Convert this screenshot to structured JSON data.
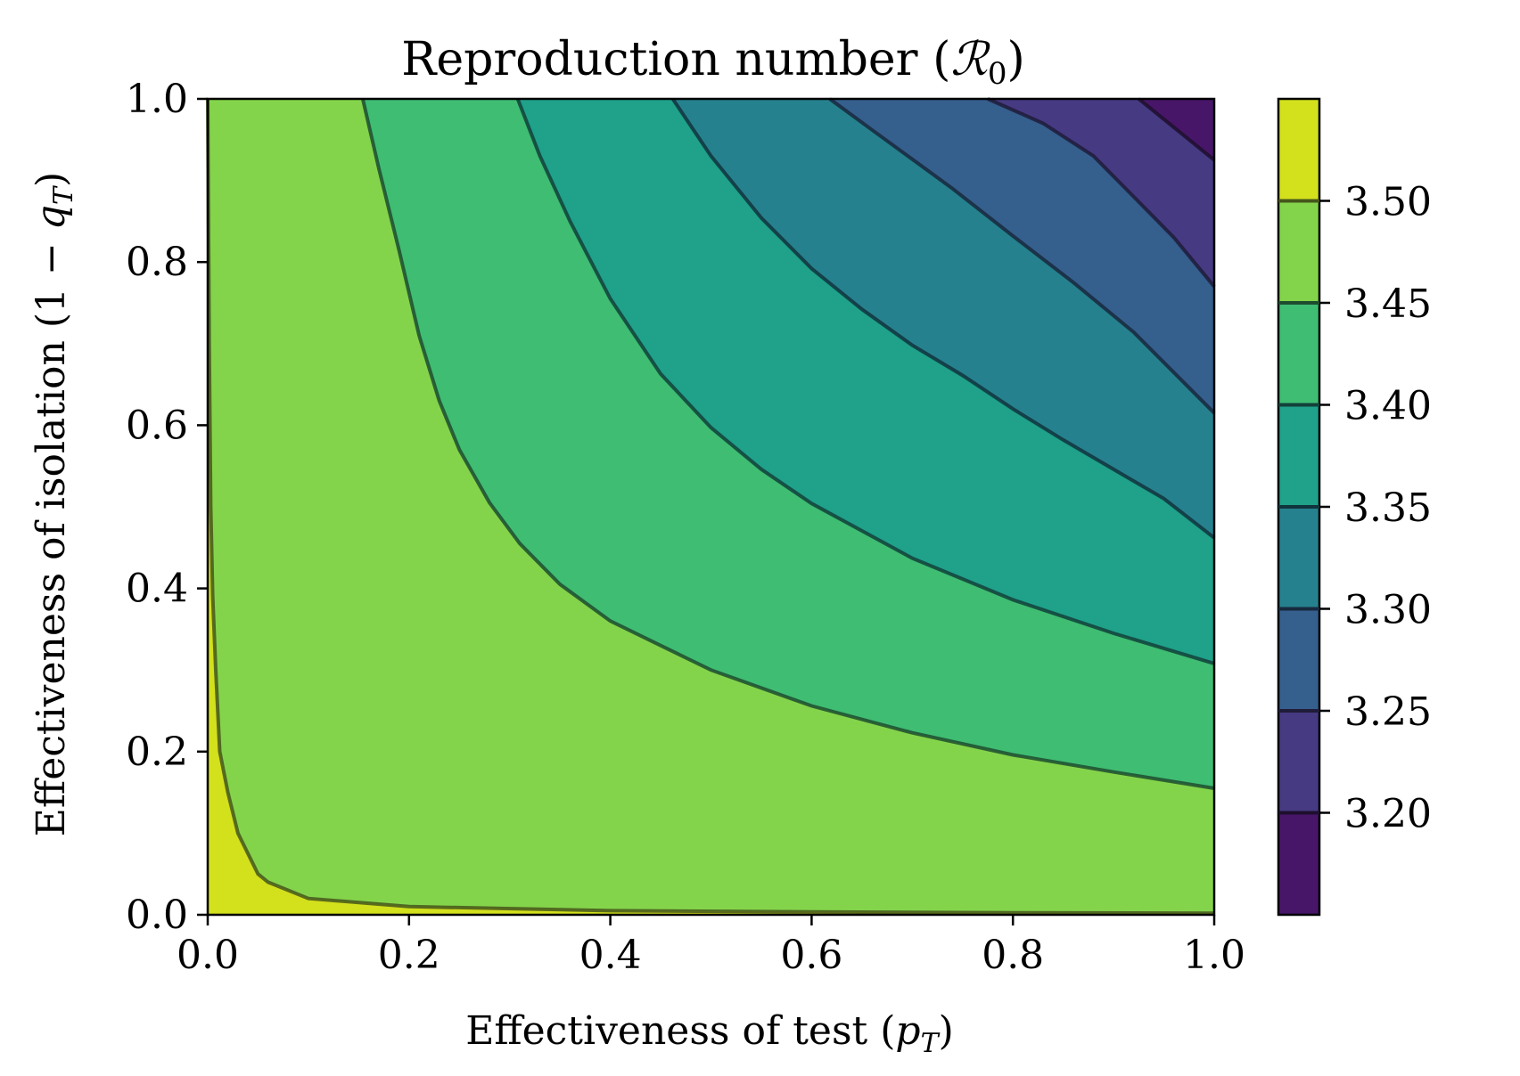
{
  "chart_data": {
    "type": "contourf",
    "title": "Reproduction number (ℛ₀)",
    "title_parts": {
      "main": "Reproduction number (",
      "symbol": "ℛ",
      "sub": "0",
      "close": ")"
    },
    "xlabel": "Effectiveness of test (p_T)",
    "xlabel_parts": {
      "main": "Effectiveness of test (",
      "symbol": "p",
      "sub": "T",
      "close": ")"
    },
    "ylabel": "Effectiveness of isolation (1 − q_T)",
    "ylabel_parts": {
      "main": "Effectiveness of isolation (1 − ",
      "symbol": "q",
      "sub": "T",
      "close": ")"
    },
    "xlim": [
      0.0,
      1.0
    ],
    "ylim": [
      0.0,
      1.0
    ],
    "x_ticks": [
      0.0,
      0.2,
      0.4,
      0.6,
      0.8,
      1.0
    ],
    "x_tick_labels": [
      "0.0",
      "0.2",
      "0.4",
      "0.6",
      "0.8",
      "1.0"
    ],
    "y_ticks": [
      0.0,
      0.2,
      0.4,
      0.6,
      0.8,
      1.0
    ],
    "y_tick_labels": [
      "0.0",
      "0.2",
      "0.4",
      "0.6",
      "0.8",
      "1.0"
    ],
    "colorbar": {
      "range": [
        3.15,
        3.55
      ],
      "ticks": [
        3.2,
        3.25,
        3.3,
        3.35,
        3.4,
        3.45,
        3.5
      ],
      "tick_labels": [
        "3.20",
        "3.25",
        "3.30",
        "3.35",
        "3.40",
        "3.45",
        "3.50"
      ],
      "bands": [
        {
          "from": 3.15,
          "to": 3.2,
          "color": "#481668"
        },
        {
          "from": 3.2,
          "to": 3.25,
          "color": "#463a83"
        },
        {
          "from": 3.25,
          "to": 3.3,
          "color": "#355f8d"
        },
        {
          "from": 3.3,
          "to": 3.35,
          "color": "#26818e"
        },
        {
          "from": 3.35,
          "to": 3.4,
          "color": "#1fa18a"
        },
        {
          "from": 3.4,
          "to": 3.45,
          "color": "#3fbd72"
        },
        {
          "from": 3.45,
          "to": 3.5,
          "color": "#84d44b"
        },
        {
          "from": 3.5,
          "to": 3.55,
          "color": "#d3e01c"
        }
      ]
    },
    "contour_levels": [
      {
        "level": 3.2,
        "line_color": "#1e0f2e",
        "points": [
          [
            0.925,
            1.0
          ],
          [
            1.0,
            0.925
          ]
        ]
      },
      {
        "level": 3.25,
        "line_color": "#1f1c3a",
        "points": [
          [
            0.775,
            1.0
          ],
          [
            0.83,
            0.97
          ],
          [
            0.88,
            0.93
          ],
          [
            0.92,
            0.88
          ],
          [
            0.96,
            0.83
          ],
          [
            1.0,
            0.77
          ]
        ]
      },
      {
        "level": 3.3,
        "line_color": "#18293d",
        "points": [
          [
            0.618,
            1.0
          ],
          [
            0.66,
            0.962
          ],
          [
            0.7,
            0.926
          ],
          [
            0.74,
            0.89
          ],
          [
            0.8,
            0.832
          ],
          [
            0.86,
            0.775
          ],
          [
            0.92,
            0.714
          ],
          [
            1.0,
            0.615
          ]
        ]
      },
      {
        "level": 3.35,
        "line_color": "#11343d",
        "points": [
          [
            0.462,
            1.0
          ],
          [
            0.5,
            0.93
          ],
          [
            0.55,
            0.854
          ],
          [
            0.6,
            0.792
          ],
          [
            0.65,
            0.742
          ],
          [
            0.7,
            0.698
          ],
          [
            0.75,
            0.661
          ],
          [
            0.8,
            0.62
          ],
          [
            0.85,
            0.582
          ],
          [
            0.9,
            0.546
          ],
          [
            0.95,
            0.51
          ],
          [
            1.0,
            0.462
          ]
        ]
      },
      {
        "level": 3.4,
        "line_color": "#12413a",
        "points": [
          [
            0.308,
            1.0
          ],
          [
            0.33,
            0.93
          ],
          [
            0.36,
            0.85
          ],
          [
            0.4,
            0.755
          ],
          [
            0.45,
            0.663
          ],
          [
            0.5,
            0.597
          ],
          [
            0.55,
            0.546
          ],
          [
            0.6,
            0.504
          ],
          [
            0.7,
            0.437
          ],
          [
            0.8,
            0.386
          ],
          [
            0.9,
            0.345
          ],
          [
            1.0,
            0.308
          ]
        ]
      },
      {
        "level": 3.45,
        "line_color": "#1d4c2f",
        "points": [
          [
            0.154,
            1.0
          ],
          [
            0.17,
            0.915
          ],
          [
            0.19,
            0.815
          ],
          [
            0.21,
            0.71
          ],
          [
            0.23,
            0.63
          ],
          [
            0.25,
            0.57
          ],
          [
            0.28,
            0.505
          ],
          [
            0.31,
            0.455
          ],
          [
            0.35,
            0.405
          ],
          [
            0.4,
            0.36
          ],
          [
            0.45,
            0.33
          ],
          [
            0.5,
            0.3
          ],
          [
            0.6,
            0.256
          ],
          [
            0.7,
            0.223
          ],
          [
            0.8,
            0.196
          ],
          [
            0.9,
            0.175
          ],
          [
            1.0,
            0.155
          ]
        ]
      },
      {
        "level": 3.5,
        "line_color": "#45561b",
        "points": [
          [
            0.0,
            1.0
          ],
          [
            0.0015,
            0.7
          ],
          [
            0.003,
            0.5
          ],
          [
            0.005,
            0.39
          ],
          [
            0.008,
            0.3
          ],
          [
            0.012,
            0.2
          ],
          [
            0.02,
            0.15
          ],
          [
            0.03,
            0.1
          ],
          [
            0.05,
            0.05
          ],
          [
            0.06,
            0.04
          ],
          [
            0.1,
            0.02
          ],
          [
            0.2,
            0.01
          ],
          [
            0.4,
            0.005
          ],
          [
            0.6,
            0.0035
          ],
          [
            0.8,
            0.0025
          ],
          [
            1.0,
            0.002
          ]
        ]
      }
    ]
  }
}
